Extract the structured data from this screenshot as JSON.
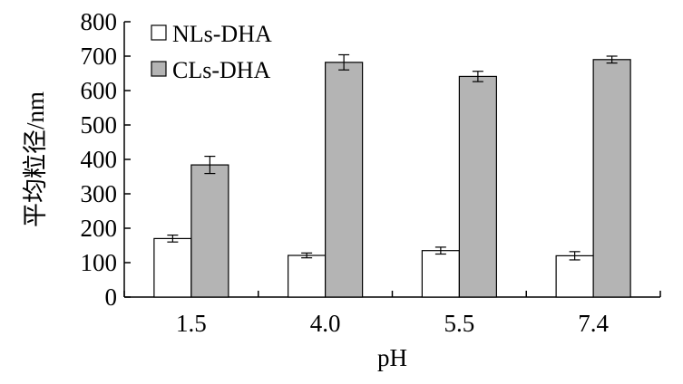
{
  "chart_data": {
    "type": "bar",
    "categories": [
      "1.5",
      "4.0",
      "5.5",
      "7.4"
    ],
    "series": [
      {
        "name": "NLs-DHA",
        "color": "#ffffff",
        "values": [
          170,
          121,
          135,
          120
        ],
        "errors": [
          10,
          7,
          10,
          12
        ]
      },
      {
        "name": "CLs-DHA",
        "color": "#b4b4b4",
        "values": [
          384,
          682,
          641,
          690
        ],
        "errors": [
          25,
          22,
          15,
          10
        ]
      }
    ],
    "xlabel": "pH",
    "ylabel": "平均粒径/nm",
    "ylim": [
      0,
      800
    ],
    "yticks": [
      "0",
      "100",
      "200",
      "300",
      "400",
      "500",
      "600",
      "700",
      "800"
    ],
    "legend_position": "top-left",
    "grid": false
  }
}
